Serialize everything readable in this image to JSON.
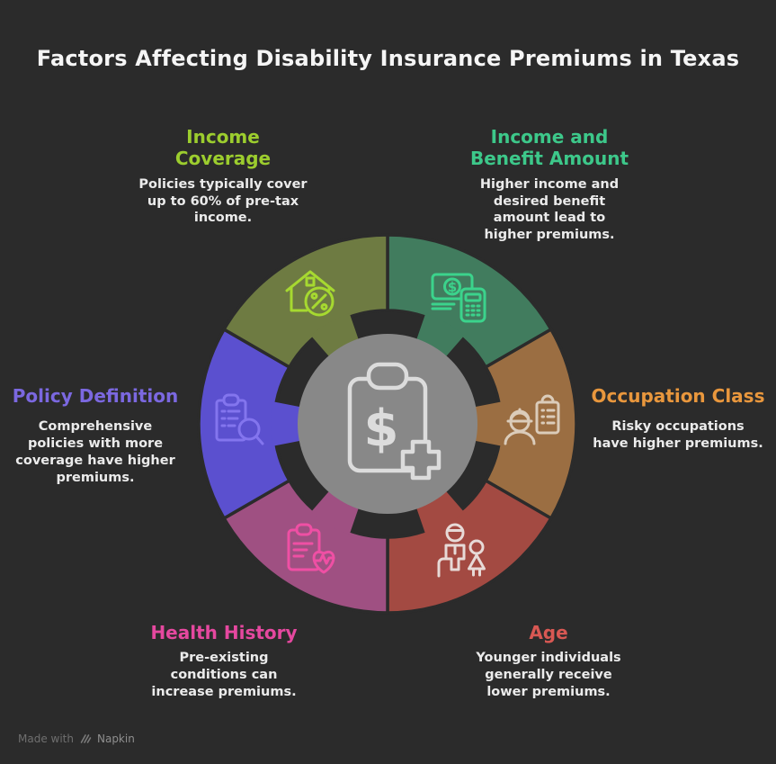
{
  "title": "Factors Affecting Disability Insurance Premiums in Texas",
  "factors": [
    {
      "id": "income-coverage",
      "heading": "Income\nCoverage",
      "color": "#9ccd2e",
      "desc": "Policies typically cover\nup to 60% of pre-tax\nincome."
    },
    {
      "id": "income-benefit",
      "heading": "Income and\nBenefit Amount",
      "color": "#3dc88a",
      "desc": "Higher income and\ndesired benefit\namount lead to\nhigher premiums."
    },
    {
      "id": "policy-definition",
      "heading": "Policy Definition",
      "color": "#7b68e0",
      "desc": "Comprehensive\npolicies with more\ncoverage have higher\npremiums."
    },
    {
      "id": "occupation-class",
      "heading": "Occupation Class",
      "color": "#e9973d",
      "desc": "Risky occupations\nhave higher premiums."
    },
    {
      "id": "health-history",
      "heading": "Health History",
      "color": "#e5489f",
      "desc": "Pre-existing\nconditions can\nincrease premiums."
    },
    {
      "id": "age",
      "heading": "Age",
      "color": "#d85853",
      "desc": "Younger individuals\ngenerally receive\nlower premiums."
    }
  ],
  "diagram": {
    "background": "#2b2b2b",
    "center_color": "#888888",
    "center_icon_color": "#dcdcdc",
    "center_icon": "clipboard-dollar-medical-icon",
    "segments": [
      {
        "id": "income-benefit",
        "label": "Income and Benefit Amount",
        "color": "#417c5e",
        "icon": "money-calculator-icon",
        "icon_color": "#3bd38c",
        "start_deg": 0,
        "end_deg": 60
      },
      {
        "id": "occupation-class",
        "label": "Occupation Class",
        "color": "#9b6e42",
        "icon": "worker-clipboard-icon",
        "icon_color": "#dbccba",
        "start_deg": 60,
        "end_deg": 120
      },
      {
        "id": "age",
        "label": "Age",
        "color": "#a34a42",
        "icon": "family-icon",
        "icon_color": "#e7dad7",
        "start_deg": 120,
        "end_deg": 180
      },
      {
        "id": "health-history",
        "label": "Health History",
        "color": "#9f5082",
        "icon": "clipboard-heart-icon",
        "icon_color": "#ef4fa4",
        "start_deg": 180,
        "end_deg": 240
      },
      {
        "id": "policy-definition",
        "label": "Policy Definition",
        "color": "#5b50cf",
        "icon": "clipboard-magnifier-icon",
        "icon_color": "#8375ee",
        "start_deg": 240,
        "end_deg": 300
      },
      {
        "id": "income-coverage",
        "label": "Income Coverage",
        "color": "#6e7b42",
        "icon": "house-percent-icon",
        "icon_color": "#a6d930",
        "start_deg": 300,
        "end_deg": 360
      }
    ],
    "dollar_glyph": "$"
  },
  "footer": {
    "made_with": "Made with",
    "brand": "Napkin"
  }
}
